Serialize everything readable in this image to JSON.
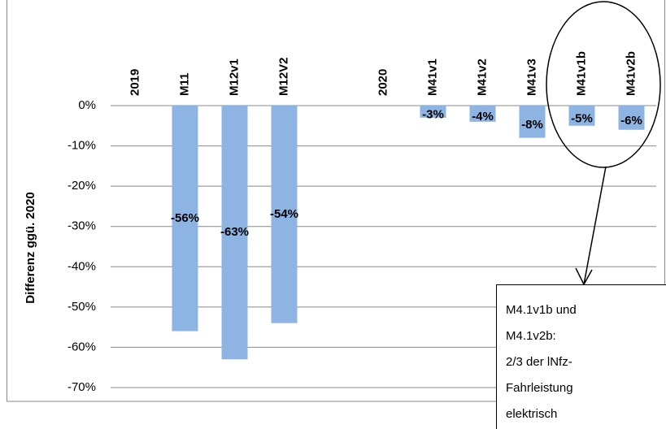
{
  "chart_data": {
    "type": "bar",
    "y_label": "Differenz ggü. 2020",
    "categories": [
      "2019",
      "M11",
      "M12v1",
      "M12V2",
      null,
      "2020",
      "M41v1",
      "M41v2",
      "M41v3",
      "M41v1b",
      "M41v2b"
    ],
    "values": [
      null,
      -56,
      -63,
      -54,
      null,
      null,
      -3,
      -4,
      -8,
      -5,
      -6
    ],
    "value_labels": [
      null,
      "-56%",
      "-63%",
      "-54%",
      null,
      null,
      "-3%",
      "-4%",
      "-8%",
      "-5%",
      "-6%"
    ],
    "color": "#8eb4e3",
    "ylim": [
      -70,
      0
    ],
    "yticks": [
      {
        "value": 0,
        "label": "0%"
      },
      {
        "value": -10,
        "label": "-10%"
      },
      {
        "value": -20,
        "label": "-20%"
      },
      {
        "value": -30,
        "label": "-30%"
      },
      {
        "value": -40,
        "label": "-40%"
      },
      {
        "value": -50,
        "label": "-50%"
      },
      {
        "value": -60,
        "label": "-60%"
      },
      {
        "value": -70,
        "label": "-70%"
      }
    ],
    "grid": true,
    "annotation": [
      "M4.1v1b und",
      "M4.1v2b:",
      "2/3 der lNfz-",
      "Fahrleistung",
      "elektrisch"
    ]
  }
}
